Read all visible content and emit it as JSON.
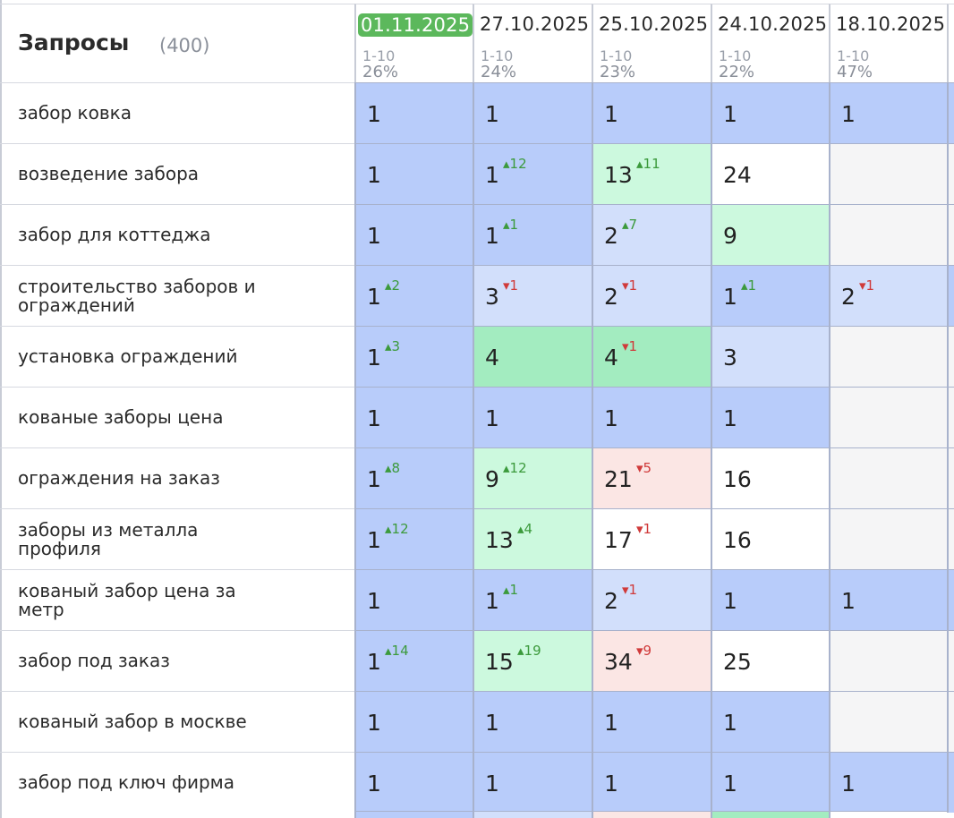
{
  "header": {
    "title": "Запросы",
    "count": "(400)"
  },
  "dates": [
    {
      "label": "01.11.2025",
      "range": "1-10",
      "pct": "26%",
      "active": true
    },
    {
      "label": "27.10.2025",
      "range": "1-10",
      "pct": "24%",
      "active": false
    },
    {
      "label": "25.10.2025",
      "range": "1-10",
      "pct": "23%",
      "active": false
    },
    {
      "label": "24.10.2025",
      "range": "1-10",
      "pct": "22%",
      "active": false
    },
    {
      "label": "18.10.2025",
      "range": "1-10",
      "pct": "47%",
      "active": false
    }
  ],
  "colors": {
    "top": "#b8ccfa",
    "top3": "#d2dffb",
    "green_dark": "#a3ecc0",
    "green_light": "#ccf9de",
    "red_light": "#fbe6e4",
    "white": "#ffffff",
    "empty": "#f5f5f6"
  },
  "rows": [
    {
      "query": "забор ковка",
      "cells": [
        {
          "pos": "1",
          "delta": "",
          "dir": "",
          "bg": "top"
        },
        {
          "pos": "1",
          "delta": "",
          "dir": "",
          "bg": "top"
        },
        {
          "pos": "1",
          "delta": "",
          "dir": "",
          "bg": "top"
        },
        {
          "pos": "1",
          "delta": "",
          "dir": "",
          "bg": "top"
        },
        {
          "pos": "1",
          "delta": "",
          "dir": "",
          "bg": "top"
        }
      ]
    },
    {
      "query": "возведение забора",
      "cells": [
        {
          "pos": "1",
          "delta": "",
          "dir": "",
          "bg": "top"
        },
        {
          "pos": "1",
          "delta": "12",
          "dir": "up",
          "bg": "top"
        },
        {
          "pos": "13",
          "delta": "11",
          "dir": "up",
          "bg": "green_light"
        },
        {
          "pos": "24",
          "delta": "",
          "dir": "",
          "bg": "white"
        },
        {
          "pos": "",
          "delta": "",
          "dir": "",
          "bg": "empty"
        }
      ]
    },
    {
      "query": "забор для коттеджа",
      "cells": [
        {
          "pos": "1",
          "delta": "",
          "dir": "",
          "bg": "top"
        },
        {
          "pos": "1",
          "delta": "1",
          "dir": "up",
          "bg": "top"
        },
        {
          "pos": "2",
          "delta": "7",
          "dir": "up",
          "bg": "top3"
        },
        {
          "pos": "9",
          "delta": "",
          "dir": "",
          "bg": "green_light"
        },
        {
          "pos": "",
          "delta": "",
          "dir": "",
          "bg": "empty"
        }
      ]
    },
    {
      "query": "строительство заборов и ограждений",
      "cells": [
        {
          "pos": "1",
          "delta": "2",
          "dir": "up",
          "bg": "top"
        },
        {
          "pos": "3",
          "delta": "1",
          "dir": "down",
          "bg": "top3"
        },
        {
          "pos": "2",
          "delta": "1",
          "dir": "down",
          "bg": "top3"
        },
        {
          "pos": "1",
          "delta": "1",
          "dir": "up",
          "bg": "top"
        },
        {
          "pos": "2",
          "delta": "1",
          "dir": "down",
          "bg": "top3"
        }
      ]
    },
    {
      "query": "установка ограждений",
      "cells": [
        {
          "pos": "1",
          "delta": "3",
          "dir": "up",
          "bg": "top"
        },
        {
          "pos": "4",
          "delta": "",
          "dir": "",
          "bg": "green_dark"
        },
        {
          "pos": "4",
          "delta": "1",
          "dir": "down",
          "bg": "green_dark"
        },
        {
          "pos": "3",
          "delta": "",
          "dir": "",
          "bg": "top3"
        },
        {
          "pos": "",
          "delta": "",
          "dir": "",
          "bg": "empty"
        }
      ]
    },
    {
      "query": "кованые заборы цена",
      "cells": [
        {
          "pos": "1",
          "delta": "",
          "dir": "",
          "bg": "top"
        },
        {
          "pos": "1",
          "delta": "",
          "dir": "",
          "bg": "top"
        },
        {
          "pos": "1",
          "delta": "",
          "dir": "",
          "bg": "top"
        },
        {
          "pos": "1",
          "delta": "",
          "dir": "",
          "bg": "top"
        },
        {
          "pos": "",
          "delta": "",
          "dir": "",
          "bg": "empty"
        }
      ]
    },
    {
      "query": "ограждения на заказ",
      "cells": [
        {
          "pos": "1",
          "delta": "8",
          "dir": "up",
          "bg": "top"
        },
        {
          "pos": "9",
          "delta": "12",
          "dir": "up",
          "bg": "green_light"
        },
        {
          "pos": "21",
          "delta": "5",
          "dir": "down",
          "bg": "red_light"
        },
        {
          "pos": "16",
          "delta": "",
          "dir": "",
          "bg": "white"
        },
        {
          "pos": "",
          "delta": "",
          "dir": "",
          "bg": "empty"
        }
      ]
    },
    {
      "query": "заборы из металла профиля",
      "cells": [
        {
          "pos": "1",
          "delta": "12",
          "dir": "up",
          "bg": "top"
        },
        {
          "pos": "13",
          "delta": "4",
          "dir": "up",
          "bg": "green_light"
        },
        {
          "pos": "17",
          "delta": "1",
          "dir": "down",
          "bg": "white"
        },
        {
          "pos": "16",
          "delta": "",
          "dir": "",
          "bg": "white"
        },
        {
          "pos": "",
          "delta": "",
          "dir": "",
          "bg": "empty"
        }
      ]
    },
    {
      "query": "кованый забор цена за метр",
      "cells": [
        {
          "pos": "1",
          "delta": "",
          "dir": "",
          "bg": "top"
        },
        {
          "pos": "1",
          "delta": "1",
          "dir": "up",
          "bg": "top"
        },
        {
          "pos": "2",
          "delta": "1",
          "dir": "down",
          "bg": "top3"
        },
        {
          "pos": "1",
          "delta": "",
          "dir": "",
          "bg": "top"
        },
        {
          "pos": "1",
          "delta": "",
          "dir": "",
          "bg": "top"
        }
      ]
    },
    {
      "query": "забор под заказ",
      "cells": [
        {
          "pos": "1",
          "delta": "14",
          "dir": "up",
          "bg": "top"
        },
        {
          "pos": "15",
          "delta": "19",
          "dir": "up",
          "bg": "green_light"
        },
        {
          "pos": "34",
          "delta": "9",
          "dir": "down",
          "bg": "red_light"
        },
        {
          "pos": "25",
          "delta": "",
          "dir": "",
          "bg": "white"
        },
        {
          "pos": "",
          "delta": "",
          "dir": "",
          "bg": "empty"
        }
      ]
    },
    {
      "query": "кованый забор в москве",
      "cells": [
        {
          "pos": "1",
          "delta": "",
          "dir": "",
          "bg": "top"
        },
        {
          "pos": "1",
          "delta": "",
          "dir": "",
          "bg": "top"
        },
        {
          "pos": "1",
          "delta": "",
          "dir": "",
          "bg": "top"
        },
        {
          "pos": "1",
          "delta": "",
          "dir": "",
          "bg": "top"
        },
        {
          "pos": "",
          "delta": "",
          "dir": "",
          "bg": "empty"
        }
      ]
    },
    {
      "query": "забор под ключ фирма",
      "cells": [
        {
          "pos": "1",
          "delta": "",
          "dir": "",
          "bg": "top"
        },
        {
          "pos": "1",
          "delta": "",
          "dir": "",
          "bg": "top"
        },
        {
          "pos": "1",
          "delta": "",
          "dir": "",
          "bg": "top"
        },
        {
          "pos": "1",
          "delta": "",
          "dir": "",
          "bg": "top"
        },
        {
          "pos": "1",
          "delta": "",
          "dir": "",
          "bg": "top"
        }
      ]
    }
  ],
  "next_row_colors": [
    "top",
    "top3",
    "red_light",
    "green_dark",
    "white"
  ]
}
